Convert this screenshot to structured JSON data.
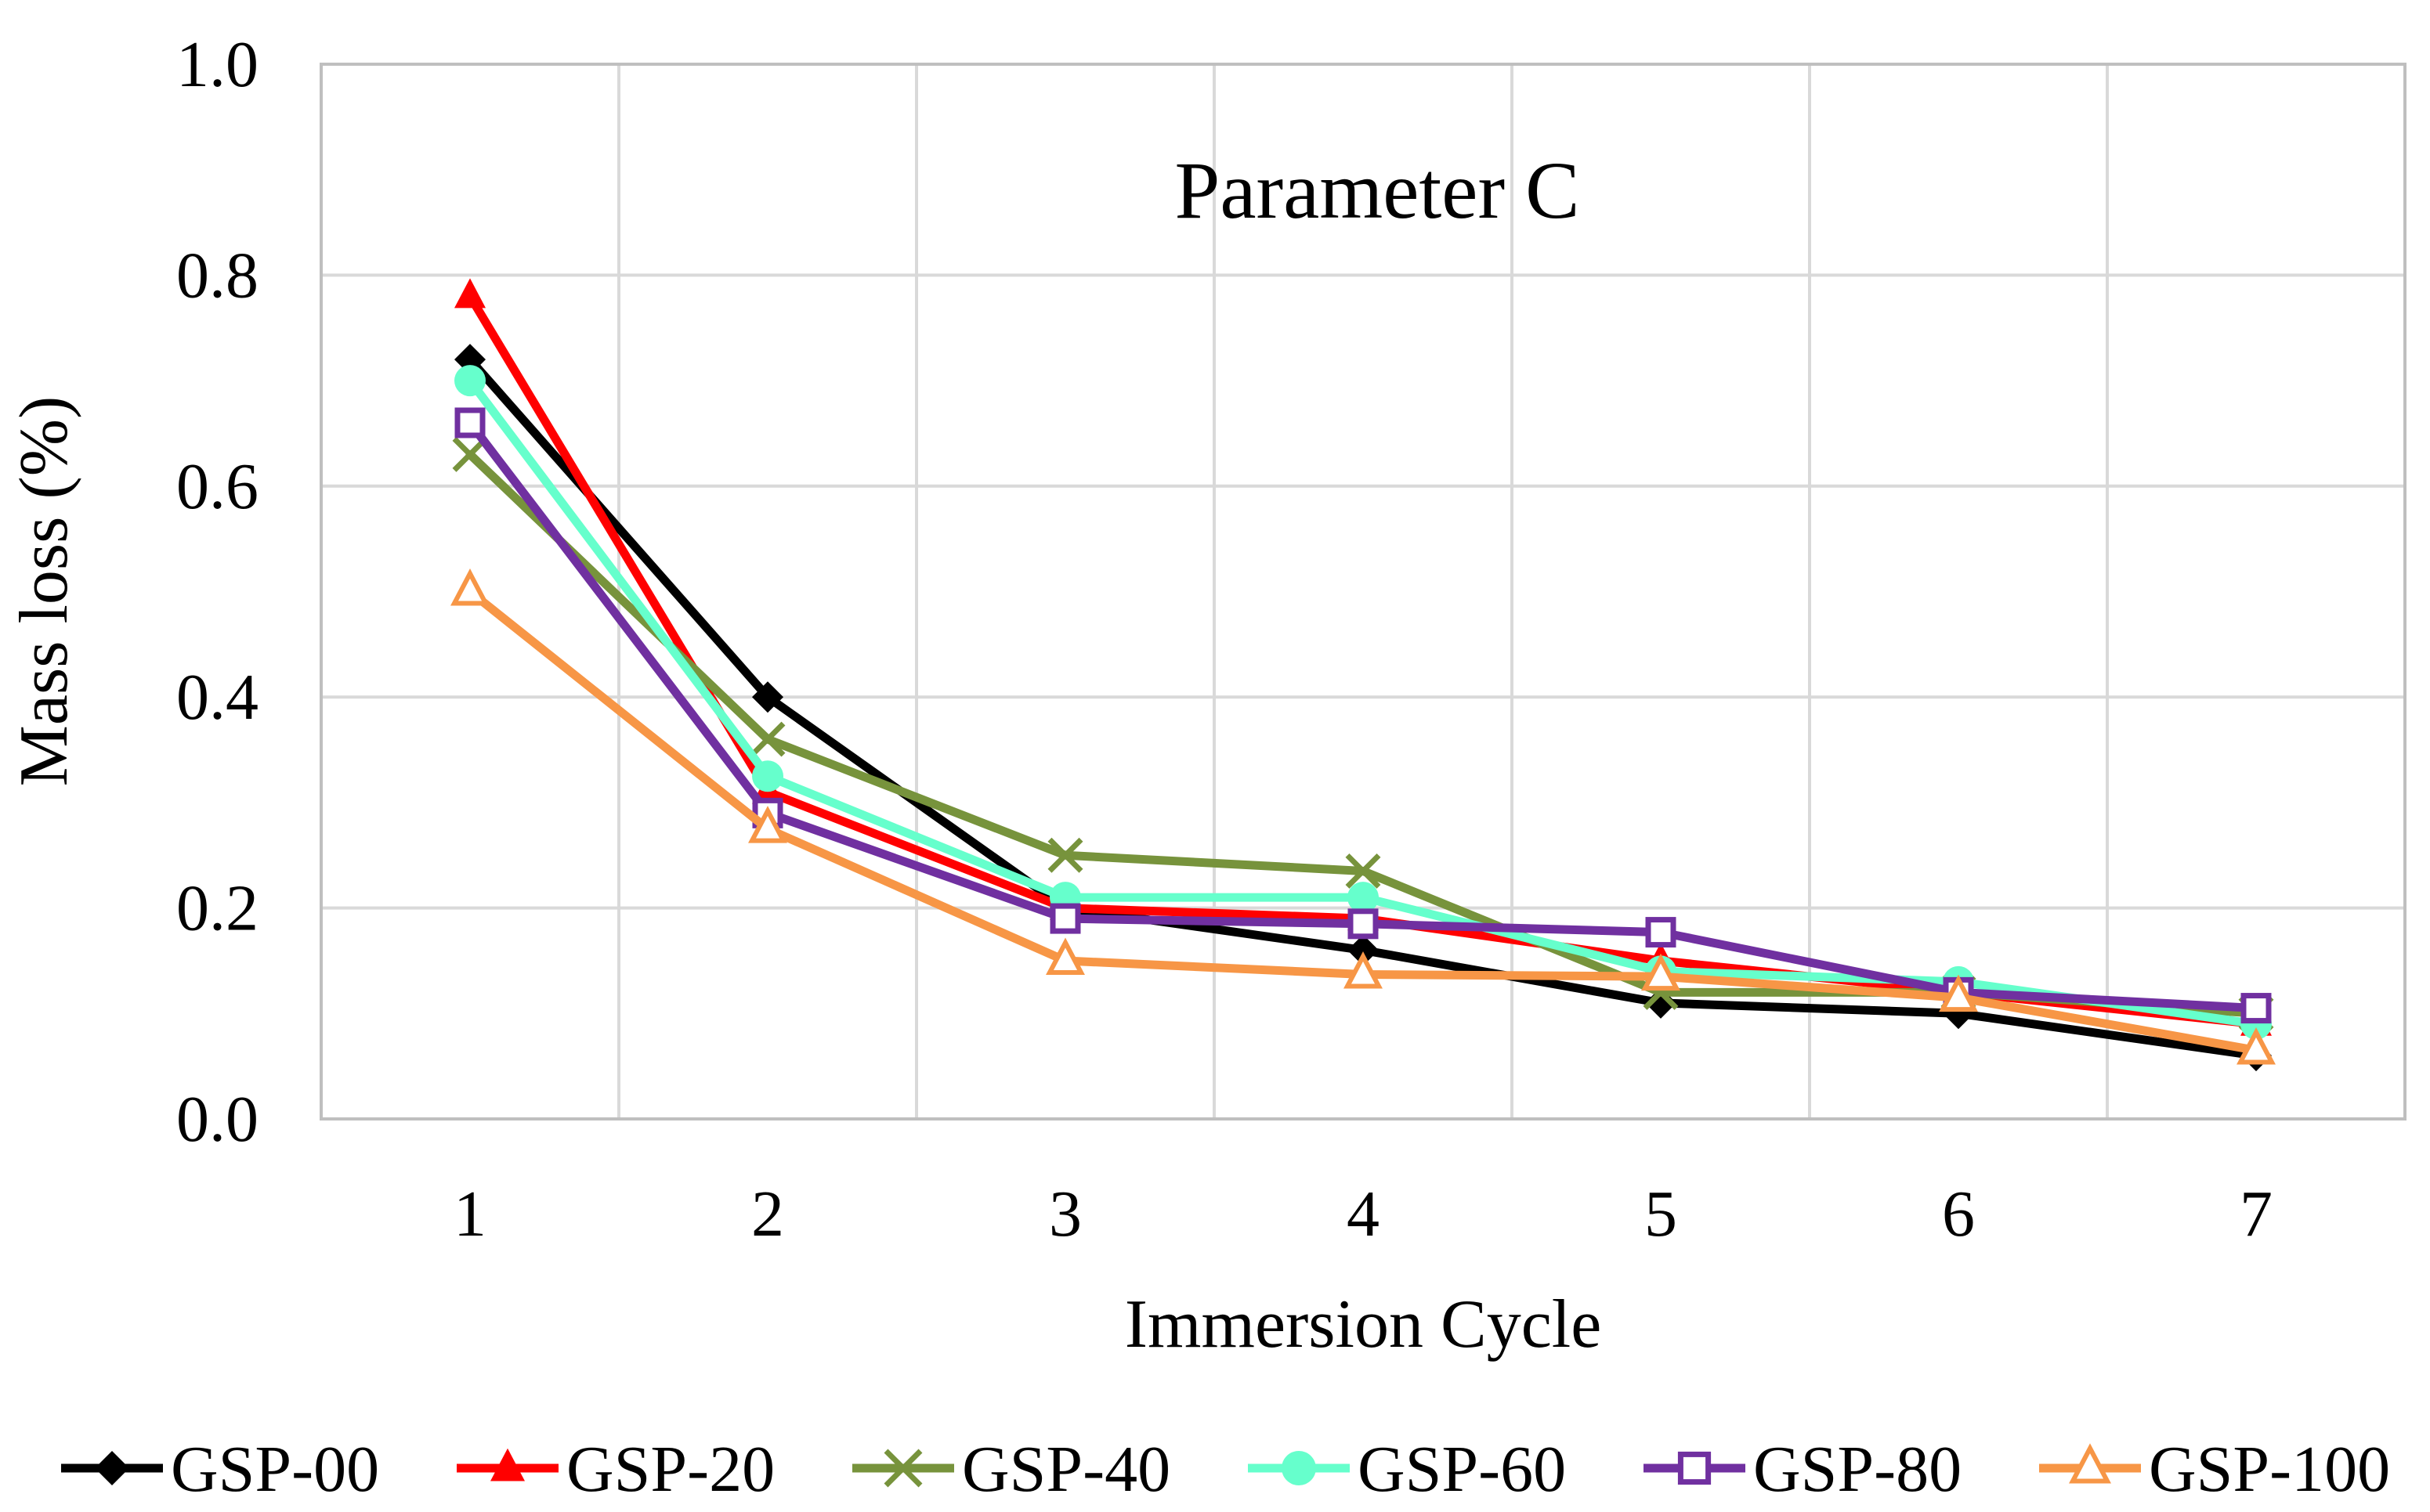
{
  "chart_data": {
    "type": "line",
    "title": "Parameter C",
    "xlabel": "Immersion Cycle",
    "ylabel": "Mass loss (%)",
    "categories": [
      "1",
      "2",
      "3",
      "4",
      "5",
      "6",
      "7"
    ],
    "ylim": [
      0,
      1.0
    ],
    "yticks": [
      0.0,
      0.2,
      0.4,
      0.6,
      0.8,
      1.0
    ],
    "ytick_labels": [
      "0.0",
      "0.2",
      "0.4",
      "0.6",
      "0.8",
      "1.0"
    ],
    "grid": true,
    "legend_position": "bottom",
    "series": [
      {
        "name": "GSP-00",
        "color": "#000000",
        "marker": "diamond",
        "values": [
          0.72,
          0.4,
          0.2,
          0.16,
          0.11,
          0.1,
          0.06
        ]
      },
      {
        "name": "GSP-20",
        "color": "#ff0000",
        "marker": "triangle",
        "values": [
          0.78,
          0.31,
          0.2,
          0.19,
          0.15,
          0.12,
          0.09
        ]
      },
      {
        "name": "GSP-40",
        "color": "#77933c",
        "marker": "x",
        "values": [
          0.63,
          0.36,
          0.25,
          0.235,
          0.12,
          0.12,
          0.1
        ]
      },
      {
        "name": "GSP-60",
        "color": "#66ffcc",
        "marker": "circle",
        "values": [
          0.7,
          0.325,
          0.21,
          0.21,
          0.14,
          0.13,
          0.09
        ]
      },
      {
        "name": "GSP-80",
        "color": "#7030a0",
        "marker": "square",
        "values": [
          0.66,
          0.29,
          0.19,
          0.185,
          0.177,
          0.12,
          0.105
        ]
      },
      {
        "name": "GSP-100",
        "color": "#f79646",
        "marker": "open-triangle",
        "values": [
          0.5,
          0.275,
          0.15,
          0.137,
          0.135,
          0.115,
          0.065
        ]
      }
    ]
  }
}
